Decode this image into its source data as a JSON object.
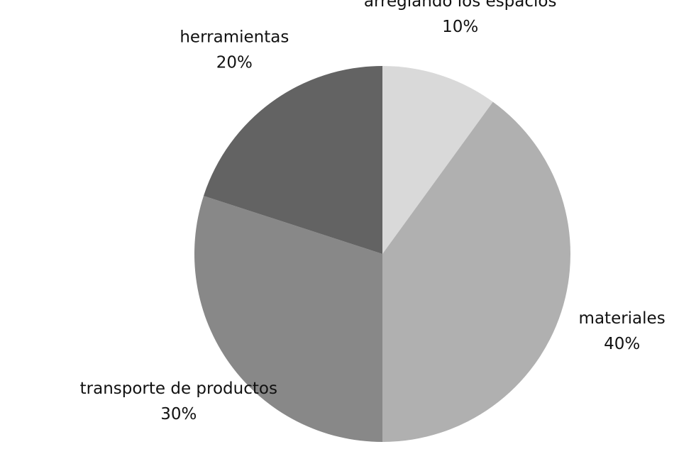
{
  "chart_data": {
    "type": "pie",
    "categories": [
      "arreglando los espacios",
      "materiales",
      "transporte de productos",
      "herramientas"
    ],
    "values": [
      10,
      40,
      30,
      20
    ],
    "value_labels": [
      "10%",
      "40%",
      "30%",
      "20%"
    ],
    "colors": [
      "#d9d9d9",
      "#b0b0b0",
      "#888888",
      "#636363"
    ],
    "start_angle": 0,
    "direction": "clockwise"
  }
}
